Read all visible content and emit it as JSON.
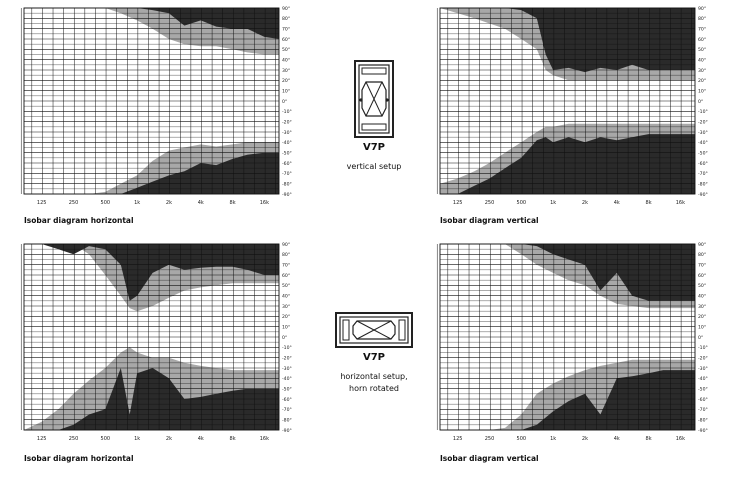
{
  "setup_vertical": {
    "model": "V7P",
    "setup_label": "vertical setup"
  },
  "setup_horizontal": {
    "model": "V7P",
    "setup_label_line1": "horizontal setup,",
    "setup_label_line2": "horn rotated"
  },
  "chart_data": [
    {
      "type": "isobar",
      "title": "Isobar diagram horizontal",
      "x_tick_labels": [
        "125",
        "250",
        "500",
        "1k",
        "2k",
        "4k",
        "8k",
        "16k"
      ],
      "y_tick_labels": [
        "90°",
        "80°",
        "70°",
        "60°",
        "50°",
        "40°",
        "30°",
        "20°",
        "10°",
        "0°",
        "-10°",
        "-20°",
        "-30°",
        "-40°",
        "-50°",
        "-60°",
        "-70°",
        "-80°",
        "-90°"
      ],
      "xlim": [
        85,
        22000
      ],
      "x_scale": "log",
      "ylim": [
        -90,
        90
      ],
      "colors": {
        "light": "#a8a8a8",
        "dark": "#2a2a2a"
      },
      "x": [
        85,
        125,
        180,
        250,
        350,
        500,
        700,
        1000,
        1400,
        2000,
        2800,
        4000,
        5600,
        8000,
        11000,
        16000,
        22000
      ],
      "light_top": [
        90,
        90,
        90,
        90,
        90,
        90,
        85,
        78,
        70,
        60,
        55,
        53,
        53,
        50,
        47,
        45,
        45
      ],
      "dark_top": [
        90,
        90,
        90,
        90,
        90,
        90,
        90,
        90,
        88,
        85,
        73,
        78,
        72,
        70,
        70,
        62,
        60
      ],
      "light_bottom": [
        -90,
        -90,
        -90,
        -90,
        -90,
        -88,
        -80,
        -72,
        -58,
        -48,
        -45,
        -42,
        -44,
        -42,
        -40,
        -40,
        -40
      ],
      "dark_bottom": [
        -90,
        -90,
        -90,
        -90,
        -90,
        -90,
        -90,
        -84,
        -78,
        -72,
        -68,
        -60,
        -62,
        -56,
        -52,
        -50,
        -50
      ]
    },
    {
      "type": "isobar",
      "title": "Isobar diagram vertical",
      "x_tick_labels": [
        "125",
        "250",
        "500",
        "1k",
        "2k",
        "4k",
        "8k",
        "16k"
      ],
      "y_tick_labels": [
        "90°",
        "80°",
        "70°",
        "60°",
        "50°",
        "40°",
        "30°",
        "20°",
        "10°",
        "0°",
        "-10°",
        "-20°",
        "-30°",
        "-40°",
        "-50°",
        "-60°",
        "-70°",
        "-80°",
        "-90°"
      ],
      "xlim": [
        85,
        22000
      ],
      "x_scale": "log",
      "ylim": [
        -90,
        90
      ],
      "colors": {
        "light": "#a8a8a8",
        "dark": "#2a2a2a"
      },
      "x": [
        85,
        125,
        180,
        250,
        350,
        500,
        700,
        850,
        1000,
        1400,
        2000,
        2800,
        4000,
        5600,
        8000,
        11000,
        16000,
        22000
      ],
      "light_top": [
        90,
        85,
        80,
        75,
        70,
        60,
        50,
        30,
        25,
        20,
        20,
        20,
        20,
        20,
        20,
        20,
        20,
        20
      ],
      "dark_top": [
        90,
        90,
        90,
        90,
        90,
        88,
        80,
        45,
        30,
        32,
        28,
        32,
        30,
        35,
        30,
        30,
        30,
        30
      ],
      "light_bottom": [
        -80,
        -75,
        -68,
        -60,
        -50,
        -40,
        -30,
        -25,
        -25,
        -22,
        -22,
        -22,
        -22,
        -22,
        -22,
        -22,
        -22,
        -22
      ],
      "dark_bottom": [
        -90,
        -90,
        -82,
        -75,
        -65,
        -55,
        -38,
        -35,
        -40,
        -35,
        -40,
        -35,
        -38,
        -35,
        -32,
        -32,
        -32,
        -32
      ]
    },
    {
      "type": "isobar",
      "title": "Isobar diagram horizontal",
      "x_tick_labels": [
        "125",
        "250",
        "500",
        "1k",
        "2k",
        "4k",
        "8k",
        "16k"
      ],
      "y_tick_labels": [
        "90°",
        "80°",
        "70°",
        "60°",
        "50°",
        "40°",
        "30°",
        "20°",
        "10°",
        "0°",
        "-10°",
        "-20°",
        "-30°",
        "-40°",
        "-50°",
        "-60°",
        "-70°",
        "-80°",
        "-90°"
      ],
      "xlim": [
        85,
        22000
      ],
      "x_scale": "log",
      "ylim": [
        -90,
        90
      ],
      "colors": {
        "light": "#a8a8a8",
        "dark": "#2a2a2a"
      },
      "x": [
        85,
        125,
        180,
        250,
        350,
        500,
        700,
        850,
        1000,
        1400,
        2000,
        2800,
        4000,
        5600,
        8000,
        11000,
        16000,
        22000
      ],
      "light_top": [
        90,
        90,
        90,
        90,
        80,
        60,
        40,
        28,
        25,
        30,
        38,
        45,
        48,
        50,
        52,
        52,
        52,
        52
      ],
      "dark_top": [
        90,
        90,
        85,
        80,
        88,
        85,
        70,
        35,
        40,
        62,
        70,
        65,
        67,
        68,
        68,
        65,
        60,
        60
      ],
      "light_bottom": [
        -90,
        -82,
        -70,
        -55,
        -42,
        -30,
        -15,
        -10,
        -15,
        -20,
        -20,
        -25,
        -28,
        -30,
        -32,
        -32,
        -32,
        -32
      ],
      "dark_bottom": [
        -90,
        -90,
        -90,
        -85,
        -75,
        -70,
        -30,
        -75,
        -35,
        -30,
        -40,
        -60,
        -58,
        -55,
        -52,
        -50,
        -50,
        -50
      ]
    },
    {
      "type": "isobar",
      "title": "Isobar diagram vertical",
      "x_tick_labels": [
        "125",
        "250",
        "500",
        "1k",
        "2k",
        "4k",
        "8k",
        "16k"
      ],
      "y_tick_labels": [
        "90°",
        "80°",
        "70°",
        "60°",
        "50°",
        "40°",
        "30°",
        "20°",
        "10°",
        "0°",
        "-10°",
        "-20°",
        "-30°",
        "-40°",
        "-50°",
        "-60°",
        "-70°",
        "-80°",
        "-90°"
      ],
      "xlim": [
        85,
        22000
      ],
      "x_scale": "log",
      "ylim": [
        -90,
        90
      ],
      "colors": {
        "light": "#a8a8a8",
        "dark": "#2a2a2a"
      },
      "x": [
        85,
        125,
        180,
        250,
        350,
        500,
        700,
        1000,
        1400,
        2000,
        2800,
        4000,
        5600,
        8000,
        11000,
        16000,
        22000
      ],
      "light_top": [
        90,
        90,
        90,
        90,
        90,
        80,
        70,
        62,
        55,
        50,
        40,
        32,
        30,
        28,
        28,
        28,
        28
      ],
      "dark_top": [
        90,
        90,
        90,
        90,
        90,
        90,
        88,
        80,
        75,
        70,
        45,
        62,
        40,
        35,
        35,
        35,
        35
      ],
      "light_bottom": [
        -90,
        -90,
        -90,
        -90,
        -88,
        -75,
        -55,
        -45,
        -38,
        -32,
        -28,
        -25,
        -22,
        -22,
        -22,
        -22,
        -22
      ],
      "dark_bottom": [
        -90,
        -90,
        -90,
        -90,
        -90,
        -90,
        -85,
        -72,
        -62,
        -55,
        -75,
        -40,
        -38,
        -35,
        -32,
        -32,
        -32
      ]
    }
  ]
}
